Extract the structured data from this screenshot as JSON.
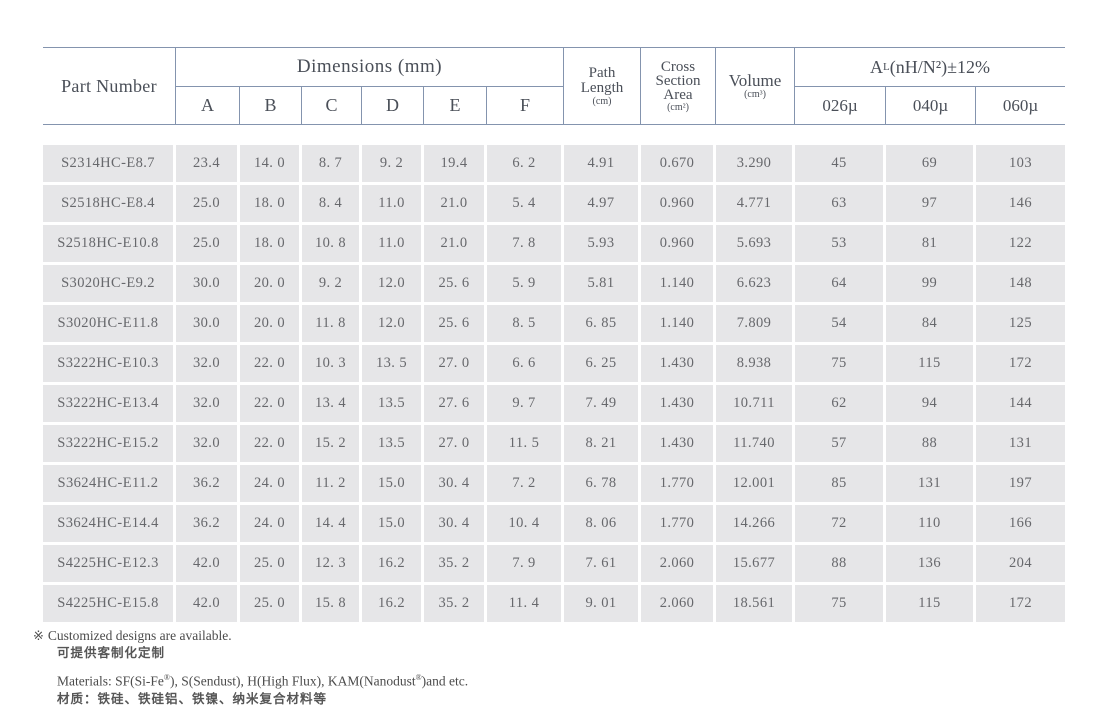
{
  "table": {
    "header": {
      "part_number": "Part Number",
      "dimensions": "Dimensions (mm)",
      "dim_cols": [
        "A",
        "B",
        "C",
        "D",
        "E",
        "F"
      ],
      "path_length": {
        "name": "Path\nLength",
        "unit": "(cm)"
      },
      "cross_section": {
        "name": "Cross\nSection\nArea",
        "unit": "(cm²)"
      },
      "volume": {
        "name": "Volume",
        "unit": "(cm³)"
      },
      "al": {
        "base": "A",
        "sub": "L",
        "rest": "(nH/N²)±12%"
      },
      "al_cols": [
        "026µ",
        "040µ",
        "060µ"
      ]
    },
    "rows": [
      [
        "S2314HC-E8.7",
        "23.4",
        "14. 0",
        "8. 7",
        "9. 2",
        "19.4",
        "6. 2",
        "4.91",
        "0.670",
        "3.290",
        "45",
        "69",
        "103"
      ],
      [
        "S2518HC-E8.4",
        "25.0",
        "18. 0",
        "8. 4",
        "11.0",
        "21.0",
        "5. 4",
        "4.97",
        "0.960",
        "4.771",
        "63",
        "97",
        "146"
      ],
      [
        "S2518HC-E10.8",
        "25.0",
        "18. 0",
        "10. 8",
        "11.0",
        "21.0",
        "7. 8",
        "5.93",
        "0.960",
        "5.693",
        "53",
        "81",
        "122"
      ],
      [
        "S3020HC-E9.2",
        "30.0",
        "20. 0",
        "9. 2",
        "12.0",
        "25. 6",
        "5. 9",
        "5.81",
        "1.140",
        "6.623",
        "64",
        "99",
        "148"
      ],
      [
        "S3020HC-E11.8",
        "30.0",
        "20. 0",
        "11. 8",
        "12.0",
        "25. 6",
        "8. 5",
        "6. 85",
        "1.140",
        "7.809",
        "54",
        "84",
        "125"
      ],
      [
        "S3222HC-E10.3",
        "32.0",
        "22. 0",
        "10. 3",
        "13. 5",
        "27. 0",
        "6. 6",
        "6. 25",
        "1.430",
        "8.938",
        "75",
        "115",
        "172"
      ],
      [
        "S3222HC-E13.4",
        "32.0",
        "22. 0",
        "13. 4",
        "13.5",
        "27. 6",
        "9. 7",
        "7. 49",
        "1.430",
        "10.711",
        "62",
        "94",
        "144"
      ],
      [
        "S3222HC-E15.2",
        "32.0",
        "22. 0",
        "15. 2",
        "13.5",
        "27. 0",
        "11. 5",
        "8. 21",
        "1.430",
        "11.740",
        "57",
        "88",
        "131"
      ],
      [
        "S3624HC-E11.2",
        "36.2",
        "24. 0",
        "11. 2",
        "15.0",
        "30. 4",
        "7. 2",
        "6. 78",
        "1.770",
        "12.001",
        "85",
        "131",
        "197"
      ],
      [
        "S3624HC-E14.4",
        "36.2",
        "24. 0",
        "14. 4",
        "15.0",
        "30. 4",
        "10. 4",
        "8. 06",
        "1.770",
        "14.266",
        "72",
        "110",
        "166"
      ],
      [
        "S4225HC-E12.3",
        "42.0",
        "25. 0",
        "12. 3",
        "16.2",
        "35. 2",
        "7. 9",
        "7. 61",
        "2.060",
        "15.677",
        "88",
        "136",
        "204"
      ],
      [
        "S4225HC-E15.8",
        "42.0",
        "25. 0",
        "15. 8",
        "16.2",
        "35. 2",
        "11. 4",
        "9. 01",
        "2.060",
        "18.561",
        "75",
        "115",
        "172"
      ]
    ]
  },
  "notes": {
    "marker": "※",
    "custom_en": "Customized designs are available.",
    "custom_cn": "可提供客制化定制",
    "materials_en": {
      "pre": "Materials: SF(Si-Fe",
      "sup1": "®",
      "mid": "), S(Sendust), H(High Flux), KAM(Nanodust",
      "sup2": "®",
      "tail": ")and etc."
    },
    "materials_cn": "材质：铁硅、铁硅铝、铁镍、纳米复合材料等"
  },
  "colors": {
    "header_line": "#8494ae",
    "header_text": "#4a4f58",
    "cell_background": "#e6e6e8",
    "cell_text": "#67686c",
    "note_text": "#4b4b4b"
  }
}
